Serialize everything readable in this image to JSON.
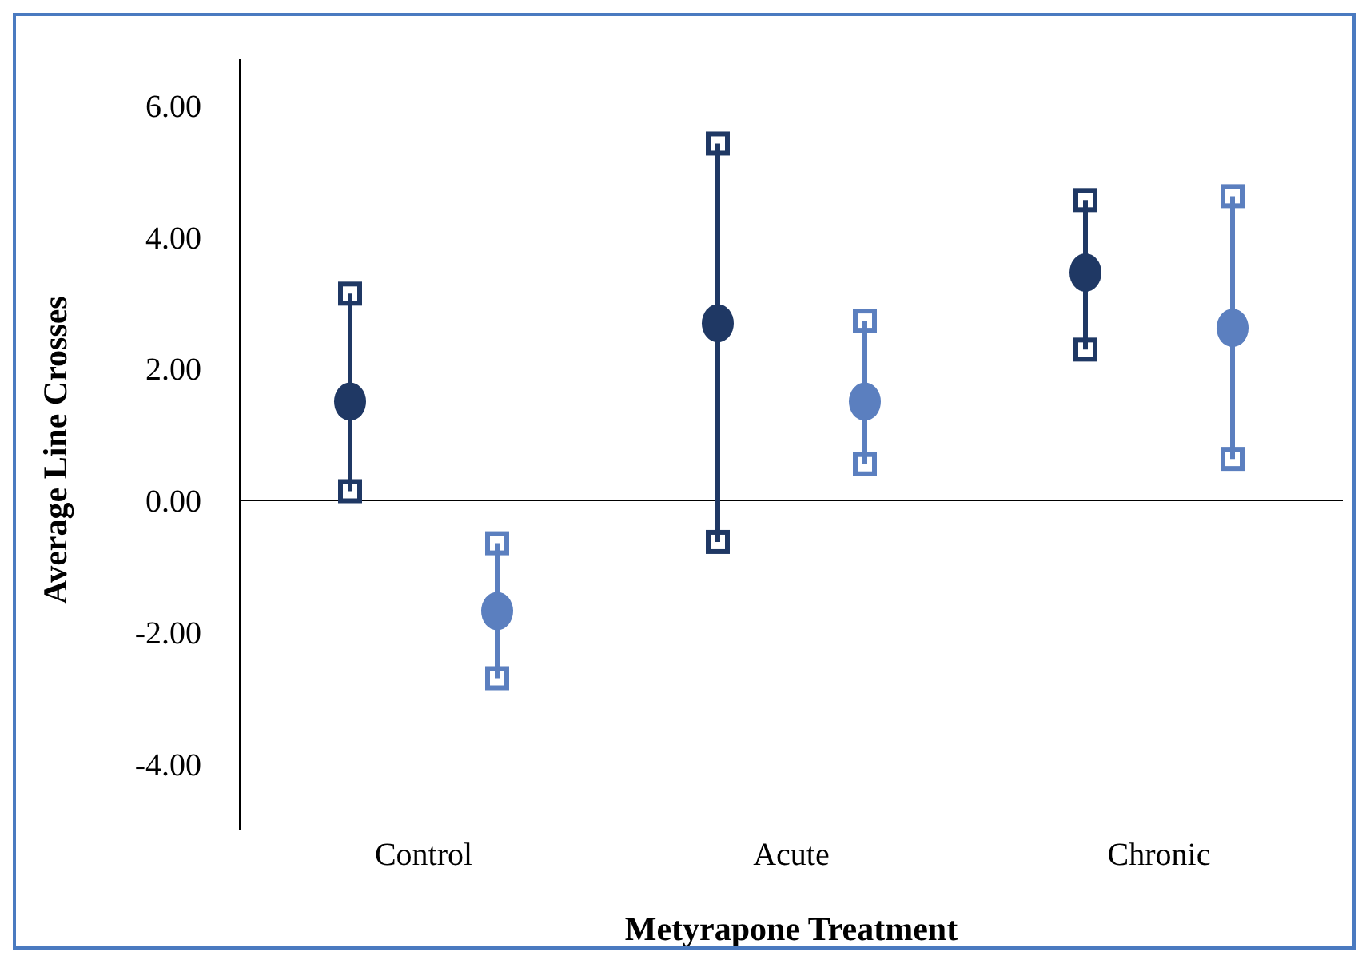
{
  "chart_data": {
    "type": "scatter",
    "xlabel": "Metyrapone Treatment",
    "ylabel": "Average Line Crosses",
    "categories": [
      "Control",
      "Acute",
      "Chronic"
    ],
    "series": [
      {
        "color": "#1f3864",
        "values": [
          1.5,
          2.69,
          3.46
        ],
        "errors": [
          [
            0.14,
            3.14
          ],
          [
            -0.63,
            5.42
          ],
          [
            2.29,
            4.56
          ]
        ]
      },
      {
        "color": "#5b7fbf",
        "values": [
          -1.68,
          1.5,
          2.62
        ],
        "errors": [
          [
            -2.7,
            -0.65
          ],
          [
            0.55,
            2.73
          ],
          [
            0.63,
            4.62
          ]
        ]
      }
    ],
    "ylim": [
      -5,
      6.7
    ],
    "yticks": [
      {
        "value": -4,
        "label": "-4.00"
      },
      {
        "value": -2,
        "label": "-2.00"
      },
      {
        "value": 0,
        "label": "0.00"
      },
      {
        "value": 2,
        "label": "2.00"
      },
      {
        "value": 4,
        "label": "4.00"
      },
      {
        "value": 6,
        "label": "6.00"
      }
    ],
    "ref_lines": [
      {
        "axis": "y",
        "value": 0,
        "color": "#000000"
      }
    ],
    "grid": false,
    "legend": false,
    "marker": "circle"
  }
}
